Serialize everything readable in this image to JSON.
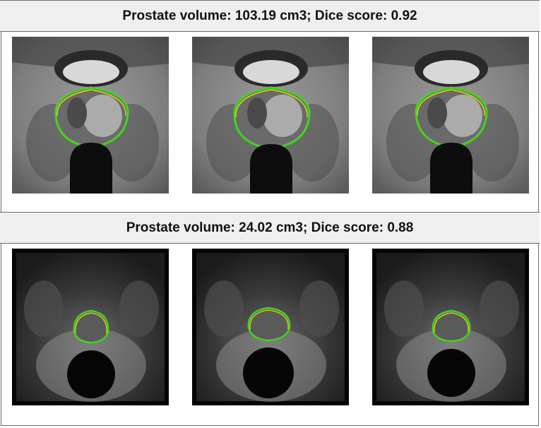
{
  "panels": [
    {
      "header": "Prostate volume: 103.19 cm3; Dice score: 0.92",
      "images": [
        {
          "modality": "t2-weighted-mri",
          "contours": [
            "green",
            "yellow"
          ]
        },
        {
          "modality": "t2-weighted-mri",
          "contours": [
            "green",
            "yellow"
          ]
        },
        {
          "modality": "t2-weighted-mri",
          "contours": [
            "green",
            "yellow"
          ]
        }
      ]
    },
    {
      "header": "Prostate volume: 24.02 cm3; Dice score: 0.88",
      "images": [
        {
          "modality": "t2-weighted-mri",
          "contours": [
            "green",
            "yellow"
          ]
        },
        {
          "modality": "t2-weighted-mri",
          "contours": [
            "green",
            "yellow"
          ]
        },
        {
          "modality": "t2-weighted-mri",
          "contours": [
            "green",
            "yellow"
          ]
        }
      ]
    }
  ],
  "colors": {
    "contour_a": "#46d21e",
    "contour_b": "#e6d21e",
    "header_bg": "#efefef",
    "border": "#6b6b6b"
  }
}
